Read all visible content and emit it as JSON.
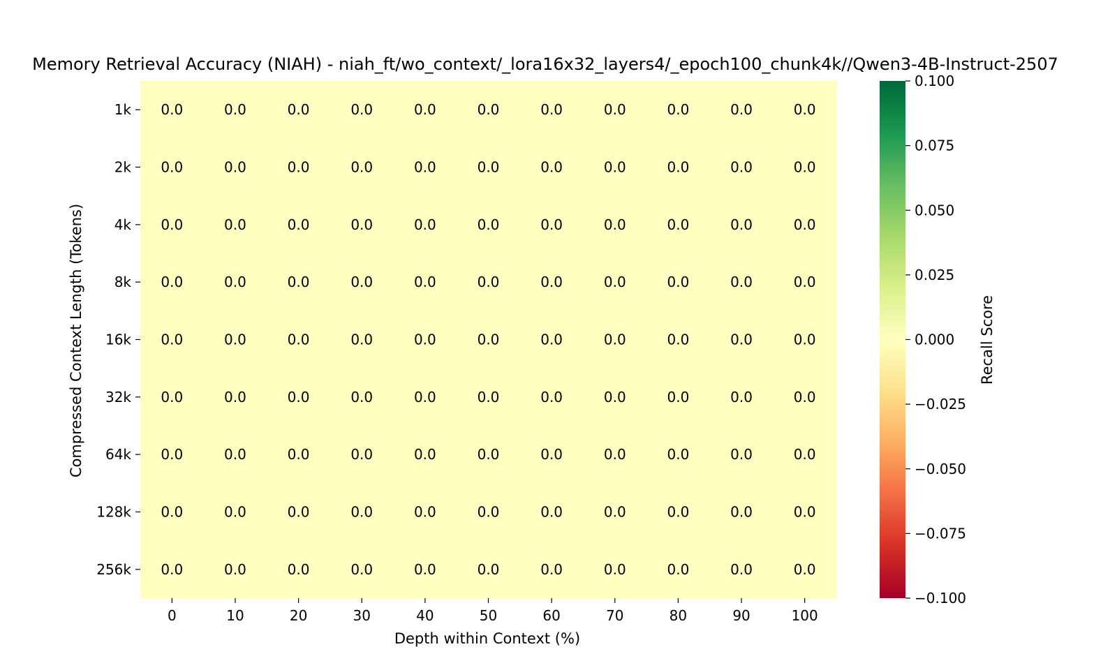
{
  "chart_data": {
    "type": "heatmap",
    "title": "Memory Retrieval Accuracy (NIAH) - niah_ft/wo_context/_lora16x32_layers4/_epoch100_chunk4k//Qwen3-4B-Instruct-2507",
    "xlabel": "Depth within Context (%)",
    "ylabel": "Compressed Context Length (Tokens)",
    "x_categories": [
      "0",
      "10",
      "20",
      "30",
      "40",
      "50",
      "60",
      "70",
      "80",
      "90",
      "100"
    ],
    "y_categories": [
      "1k",
      "2k",
      "4k",
      "8k",
      "16k",
      "32k",
      "64k",
      "128k",
      "256k"
    ],
    "values": [
      [
        0.0,
        0.0,
        0.0,
        0.0,
        0.0,
        0.0,
        0.0,
        0.0,
        0.0,
        0.0,
        0.0
      ],
      [
        0.0,
        0.0,
        0.0,
        0.0,
        0.0,
        0.0,
        0.0,
        0.0,
        0.0,
        0.0,
        0.0
      ],
      [
        0.0,
        0.0,
        0.0,
        0.0,
        0.0,
        0.0,
        0.0,
        0.0,
        0.0,
        0.0,
        0.0
      ],
      [
        0.0,
        0.0,
        0.0,
        0.0,
        0.0,
        0.0,
        0.0,
        0.0,
        0.0,
        0.0,
        0.0
      ],
      [
        0.0,
        0.0,
        0.0,
        0.0,
        0.0,
        0.0,
        0.0,
        0.0,
        0.0,
        0.0,
        0.0
      ],
      [
        0.0,
        0.0,
        0.0,
        0.0,
        0.0,
        0.0,
        0.0,
        0.0,
        0.0,
        0.0,
        0.0
      ],
      [
        0.0,
        0.0,
        0.0,
        0.0,
        0.0,
        0.0,
        0.0,
        0.0,
        0.0,
        0.0,
        0.0
      ],
      [
        0.0,
        0.0,
        0.0,
        0.0,
        0.0,
        0.0,
        0.0,
        0.0,
        0.0,
        0.0,
        0.0
      ],
      [
        0.0,
        0.0,
        0.0,
        0.0,
        0.0,
        0.0,
        0.0,
        0.0,
        0.0,
        0.0,
        0.0
      ]
    ],
    "colorbar": {
      "label": "Recall Score",
      "range": [
        -0.1,
        0.1
      ],
      "ticks": [
        0.1,
        0.075,
        0.05,
        0.025,
        0.0,
        -0.025,
        -0.05,
        -0.075,
        -0.1
      ],
      "tick_labels": [
        "0.100",
        "0.075",
        "0.050",
        "0.025",
        "0.000",
        "−0.025",
        "−0.050",
        "−0.075",
        "−0.100"
      ],
      "colormap": "RdYlGn",
      "stops": [
        "#a50026",
        "#d73027",
        "#f46d43",
        "#fdae61",
        "#fee08b",
        "#ffffbf",
        "#d9ef8b",
        "#a6d96a",
        "#66bd63",
        "#1a9850",
        "#006837"
      ]
    }
  }
}
